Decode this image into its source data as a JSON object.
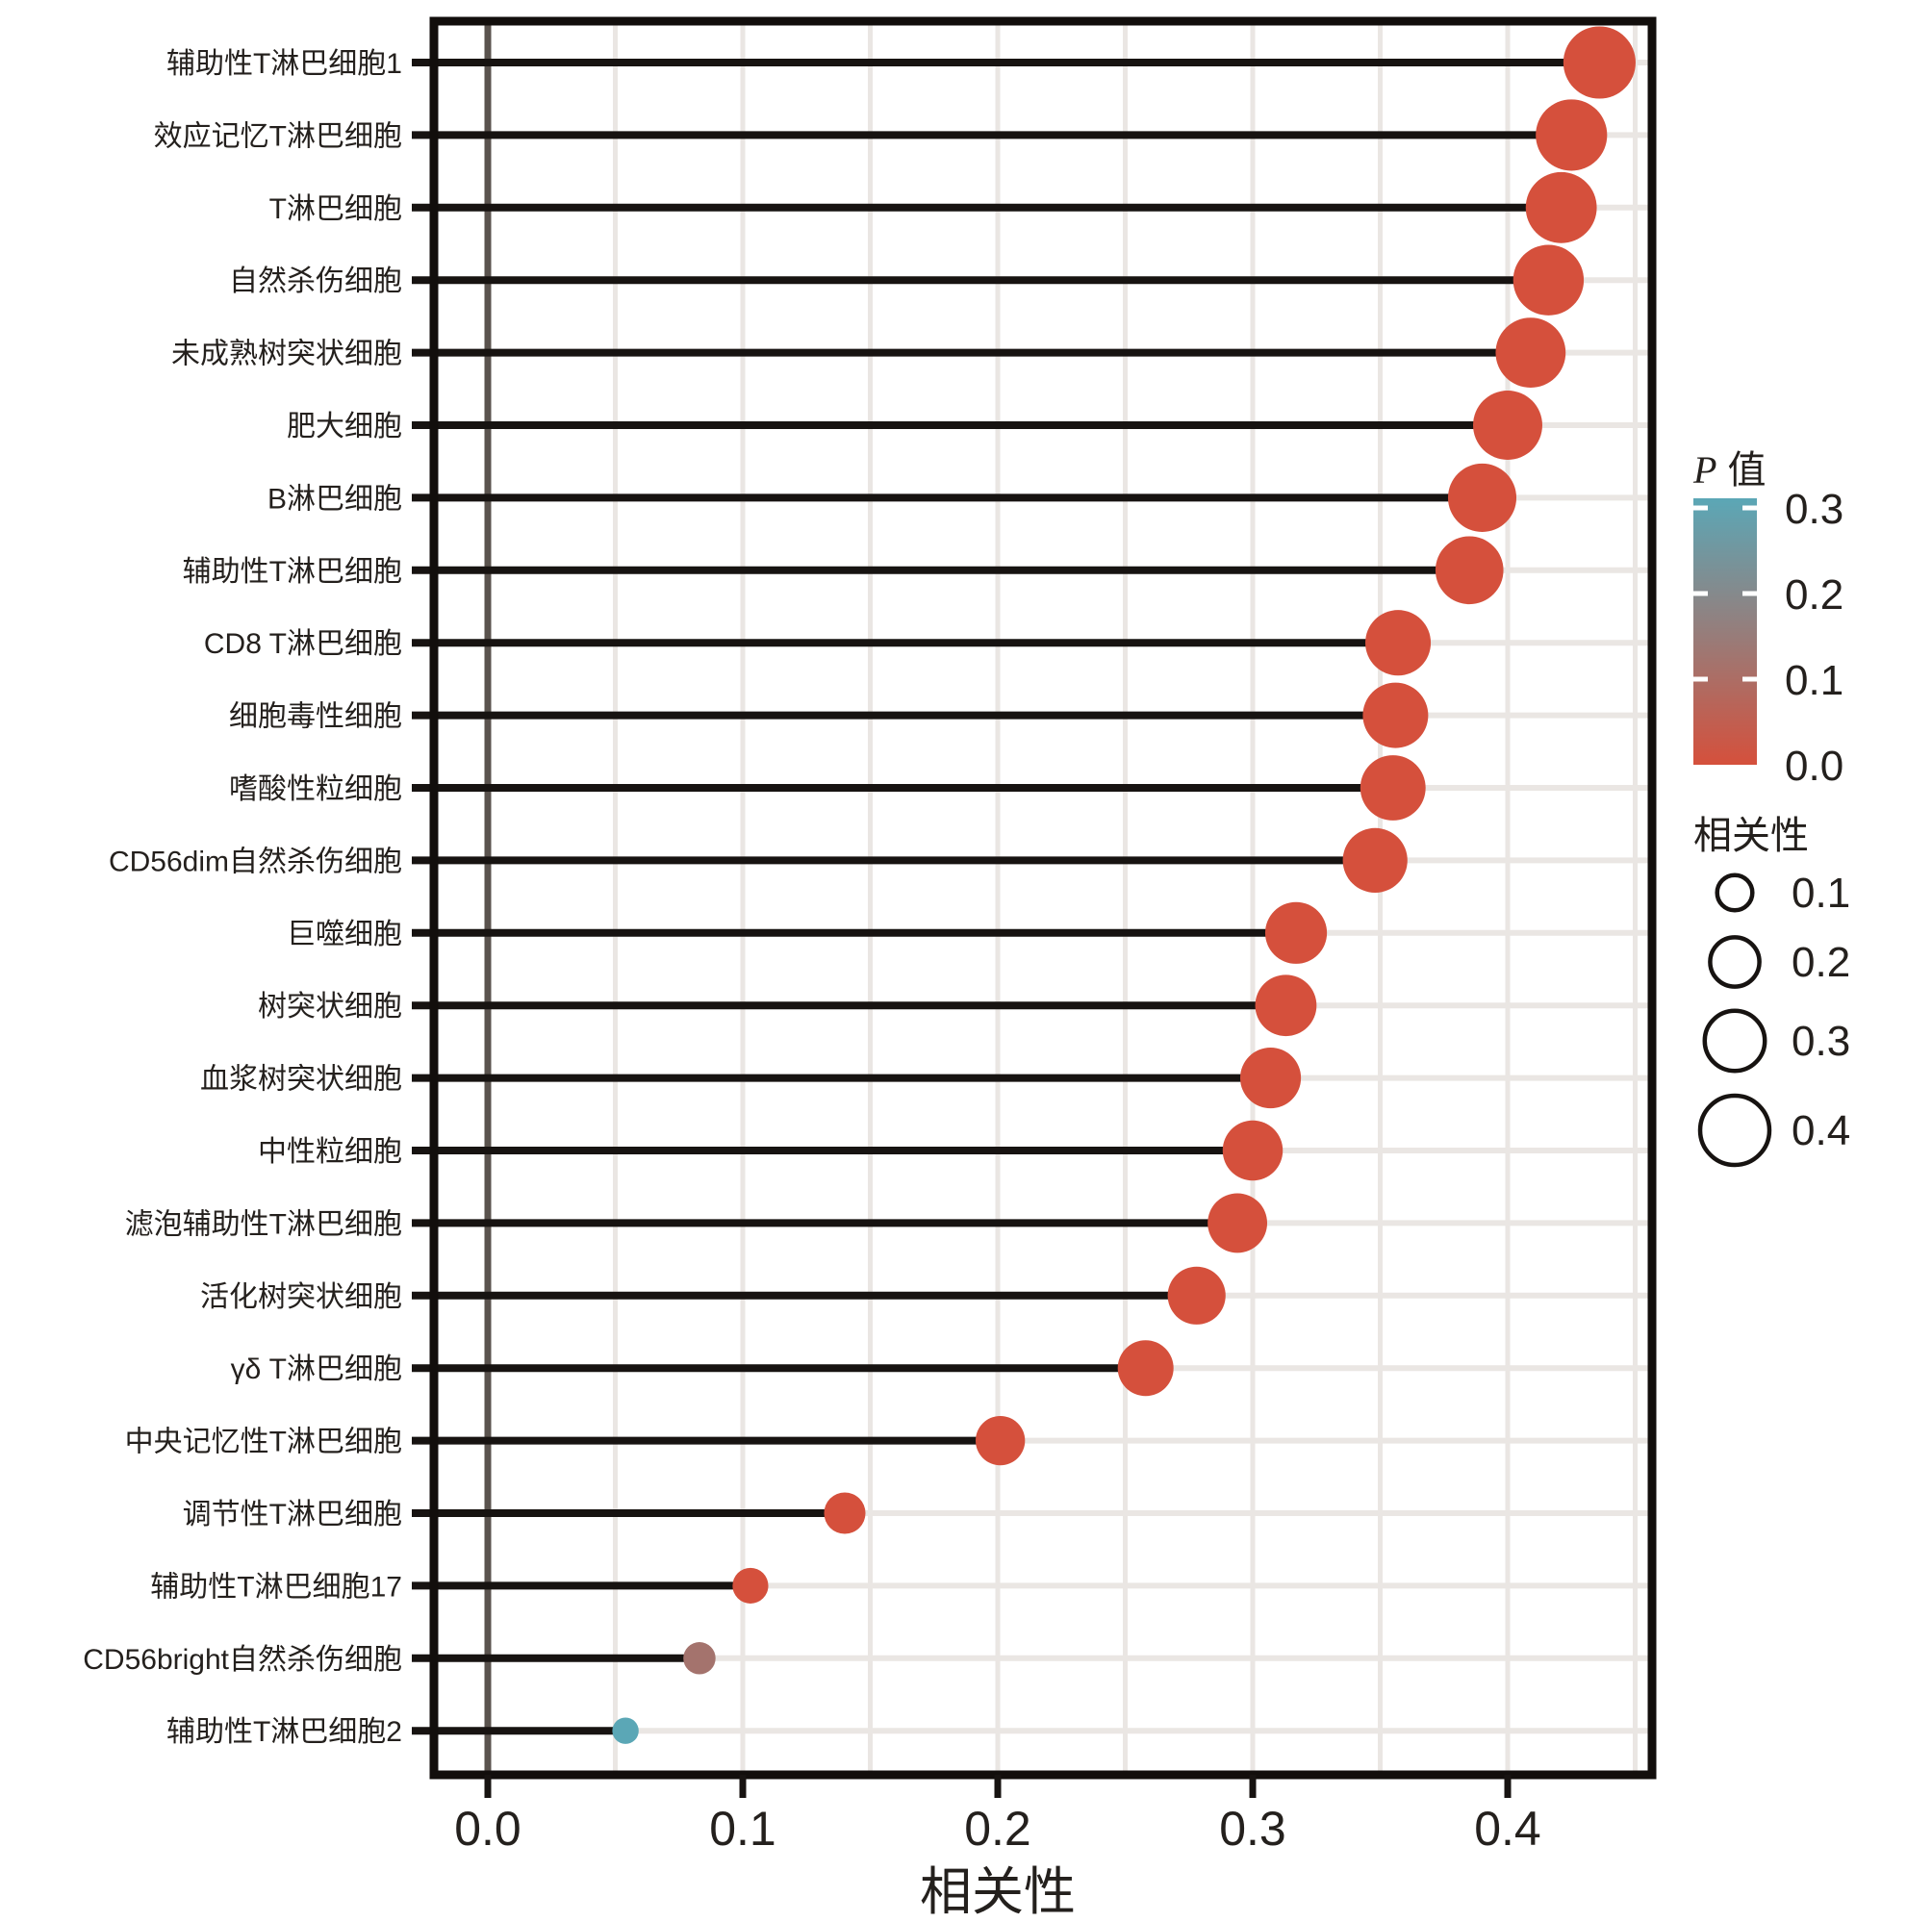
{
  "chart_data": {
    "type": "scatter",
    "subtype": "lollipop",
    "title": "",
    "xlabel": "相关性",
    "ylabel": "",
    "xlim": [
      -0.021,
      0.457
    ],
    "grid": "on",
    "x_ticks": [
      {
        "label": "0.0",
        "value": 0.0
      },
      {
        "label": "0.1",
        "value": 0.1
      },
      {
        "label": "0.2",
        "value": 0.2
      },
      {
        "label": "0.3",
        "value": 0.3
      },
      {
        "label": "0.4",
        "value": 0.4
      }
    ],
    "minor_grid_step": 0.05,
    "points": [
      {
        "label": "辅助性T淋巴细胞1",
        "correlation": 0.436,
        "p": 0.0
      },
      {
        "label": "效应记忆T淋巴细胞",
        "correlation": 0.425,
        "p": 0.0
      },
      {
        "label": "T淋巴细胞",
        "correlation": 0.421,
        "p": 0.0
      },
      {
        "label": "自然杀伤细胞",
        "correlation": 0.416,
        "p": 0.0
      },
      {
        "label": "未成熟树突状细胞",
        "correlation": 0.409,
        "p": 0.0
      },
      {
        "label": "肥大细胞",
        "correlation": 0.4,
        "p": 0.0
      },
      {
        "label": "B淋巴细胞",
        "correlation": 0.39,
        "p": 0.0
      },
      {
        "label": "辅助性T淋巴细胞",
        "correlation": 0.385,
        "p": 0.0
      },
      {
        "label": "CD8 T淋巴细胞",
        "correlation": 0.357,
        "p": 0.0
      },
      {
        "label": "细胞毒性细胞",
        "correlation": 0.356,
        "p": 0.0
      },
      {
        "label": "嗜酸性粒细胞",
        "correlation": 0.355,
        "p": 0.0
      },
      {
        "label": "CD56dim自然杀伤细胞",
        "correlation": 0.348,
        "p": 0.0
      },
      {
        "label": "巨噬细胞",
        "correlation": 0.317,
        "p": 0.0
      },
      {
        "label": "树突状细胞",
        "correlation": 0.313,
        "p": 0.0
      },
      {
        "label": "血浆树突状细胞",
        "correlation": 0.307,
        "p": 0.0
      },
      {
        "label": "中性粒细胞",
        "correlation": 0.3,
        "p": 0.0
      },
      {
        "label": "滤泡辅助性T淋巴细胞",
        "correlation": 0.294,
        "p": 0.0
      },
      {
        "label": "活化树突状细胞",
        "correlation": 0.278,
        "p": 0.0
      },
      {
        "label": "γδ T淋巴细胞",
        "correlation": 0.258,
        "p": 0.0
      },
      {
        "label": "中央记忆性T淋巴细胞",
        "correlation": 0.201,
        "p": 0.0
      },
      {
        "label": "调节性T淋巴细胞",
        "correlation": 0.14,
        "p": 0.0
      },
      {
        "label": "辅助性T淋巴细胞17",
        "correlation": 0.103,
        "p": 0.0
      },
      {
        "label": "CD56bright自然杀伤细胞",
        "correlation": 0.083,
        "p": 0.12
      },
      {
        "label": "辅助性T淋巴细胞2",
        "correlation": 0.054,
        "p": 0.3
      }
    ],
    "legend_p": {
      "title_italic": "P",
      "title_cjk": " 值",
      "range": [
        0.0,
        0.3
      ],
      "ticks": [
        {
          "label": "0.3",
          "value": 0.3
        },
        {
          "label": "0.2",
          "value": 0.2
        },
        {
          "label": "0.1",
          "value": 0.1
        },
        {
          "label": "0.0",
          "value": 0.0
        }
      ]
    },
    "legend_size": {
      "title": "相关性",
      "items": [
        {
          "label": "0.1",
          "value": 0.1
        },
        {
          "label": "0.2",
          "value": 0.2
        },
        {
          "label": "0.3",
          "value": 0.3
        },
        {
          "label": "0.4",
          "value": 0.4
        }
      ]
    },
    "colors": {
      "p_low": "#d5503c",
      "p_mid": "#987c79",
      "p_high": "#5ba7b6",
      "stem": "#171311",
      "zero_line": "#5a534e",
      "grid": "#eae6e3",
      "panel_border": "#120e0c",
      "text": "#24201d",
      "background": "#ffffff"
    }
  }
}
